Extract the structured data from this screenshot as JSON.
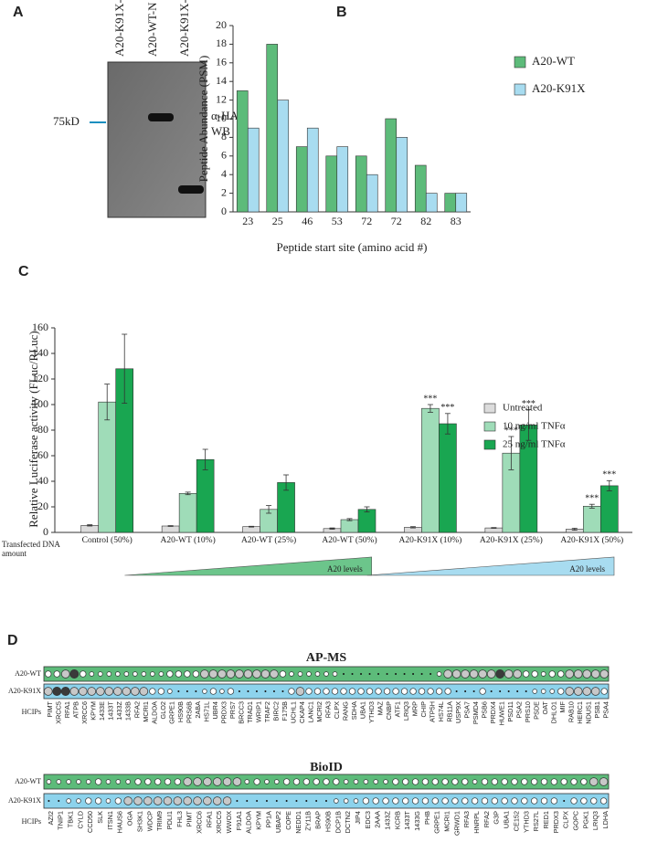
{
  "panel_a": {
    "label": "A",
    "lanes": [
      "A20-K91X-C",
      "A20-WT-N",
      "A20-K91X-N"
    ],
    "marker": "75kD",
    "antibody": [
      "α-HA",
      "WB"
    ]
  },
  "chart_data": [
    {
      "type": "bar",
      "label": "B",
      "y_label": "Peptide Abundance (PSM)",
      "x_label": "Peptide start site (amino acid #)",
      "categories": [
        "23",
        "25",
        "46",
        "53",
        "72",
        "72",
        "82",
        "83"
      ],
      "series": [
        {
          "name": "A20-WT",
          "color": "#5dbb7a",
          "values": [
            13,
            18,
            7,
            6,
            6,
            10,
            5,
            2
          ]
        },
        {
          "name": "A20-K91X",
          "color": "#a8dcf0",
          "values": [
            9,
            12,
            9,
            7,
            4,
            8,
            2,
            2
          ]
        }
      ],
      "ylim": [
        0,
        20
      ],
      "yticks": [
        0,
        2,
        4,
        6,
        8,
        10,
        12,
        14,
        16,
        18,
        20
      ]
    },
    {
      "type": "grouped-bar-error",
      "label": "C",
      "y_label": "Relative Luciferase activity (FLuc/RLuc)",
      "x_note": [
        "Transfected DNA",
        "amount"
      ],
      "categories": [
        "Control (50%)",
        "A20-WT (10%)",
        "A20-WT (25%)",
        "A20-WT (50%)",
        "A20-K91X (10%)",
        "A20-K91X (25%)",
        "A20-K91X (50%)"
      ],
      "series": [
        {
          "name": "Untreated",
          "color": "#dcdcdc",
          "values": [
            5.5,
            5,
            4.5,
            3,
            4,
            3.5,
            2.5
          ],
          "errors": [
            0.5,
            0.3,
            0.3,
            0.5,
            0.5,
            0.3,
            0.8
          ],
          "significance": [
            null,
            null,
            null,
            null,
            null,
            null,
            null
          ]
        },
        {
          "name": "10 ng/ml TNFα",
          "color": "#9fdcb8",
          "values": [
            102,
            30.5,
            18,
            10,
            97,
            62,
            20.5
          ],
          "errors": [
            14,
            1,
            3,
            0.8,
            3,
            13,
            1.5
          ],
          "significance": [
            null,
            null,
            null,
            null,
            "***",
            "***",
            "***"
          ]
        },
        {
          "name": "25 ng/ml TNFα",
          "color": "#19a651",
          "values": [
            128,
            57,
            39,
            18,
            85,
            84,
            36.5
          ],
          "errors": [
            27,
            8,
            6,
            2,
            8,
            12,
            4
          ],
          "significance": [
            null,
            null,
            null,
            null,
            "***",
            "***",
            "***"
          ]
        }
      ],
      "gradients": [
        {
          "text": "A20 levels",
          "color": "#6cc58b"
        },
        {
          "text": "A20 levels",
          "color": "#a8dcf0"
        }
      ],
      "ylim": [
        0,
        160
      ],
      "yticks": [
        0,
        20,
        40,
        60,
        80,
        100,
        120,
        140,
        160
      ]
    }
  ],
  "panel_d": {
    "label": "D",
    "blocks": [
      {
        "title": "AP-MS",
        "rows": [
          "A20-WT",
          "A20-K91X"
        ],
        "row_colors": [
          "#5dbb7a",
          "#8dd3ec"
        ],
        "axis_label": "HCIPs",
        "proteins": [
          "PIMT",
          "XRCC5",
          "RFA1",
          "ATPB",
          "XRCC6",
          "KPYM",
          "1433E",
          "1433T",
          "1433Z",
          "1433B",
          "RFA2",
          "MCRI1",
          "ALDOA",
          "GLO2",
          "GRPE1",
          "HS90B",
          "PRS6B",
          "2ABA",
          "HS71L",
          "UBR4",
          "PRDX3",
          "PRS7",
          "BRCC3",
          "TRAD1",
          "WRIP1",
          "TRAF2",
          "BIRC2",
          "F175B",
          "UCHL1",
          "CKAP4",
          "LANC1",
          "MCRI2",
          "RFA3",
          "CLPX",
          "RANG",
          "SDHA",
          "UBA1",
          "YTHD3",
          "MAZ",
          "CNBP",
          "ATF1",
          "LRIQ3",
          "MRP",
          "CHIP",
          "ATP5H",
          "HS74L",
          "RB11A",
          "USP9X",
          "PSA7",
          "PSMD4",
          "PSB6",
          "PRDX4",
          "HUWE1",
          "PSD11",
          "PSA2",
          "PRS10",
          "PSDE",
          "OAT",
          "DHLO1",
          "MIF",
          "RAB10",
          "HERC1",
          "NDUS1",
          "PSB1",
          "PSA4"
        ],
        "protein_colors": [
          "#222",
          "#222",
          "#222",
          "#222",
          "#222",
          "#9a9a3a",
          "#222",
          "#9a9a3a",
          "#222",
          "#222",
          "#222",
          "#222",
          "#222",
          "#222",
          "#222",
          "#9a9a3a",
          "#9a9a3a",
          "#9a9a3a",
          "#9a9a3a",
          "#222",
          "#222",
          "#9a9a3a",
          "#d9302a",
          "#d9302a",
          "#d9302a",
          "#d9302a",
          "#d9302a",
          "#d9302a",
          "#222",
          "#222",
          "#222",
          "#222",
          "#222",
          "#222",
          "#222",
          "#222",
          "#222",
          "#222",
          "#222",
          "#222",
          "#222",
          "#222",
          "#222",
          "#222",
          "#222",
          "#222",
          "#222",
          "#d9302a",
          "#9a9a3a",
          "#9a9a3a",
          "#222",
          "#222",
          "#d9302a",
          "#9a9a3a",
          "#9a9a3a",
          "#9a9a3a",
          "#9a9a3a",
          "#9a9a3a",
          "#9a9a3a",
          "#222",
          "#222",
          "#222",
          "#9a9a3a",
          "#9a9a3a",
          "#9a9a3a"
        ],
        "values": [
          [
            2,
            2,
            3,
            4,
            2,
            1,
            1,
            1,
            1,
            1,
            1,
            1,
            1,
            1,
            2,
            2,
            2,
            2,
            3,
            3,
            3,
            3,
            3,
            3,
            3,
            3,
            3,
            2,
            1,
            1,
            1,
            1,
            1,
            1,
            0,
            0,
            0,
            0,
            0,
            0,
            0,
            0,
            0,
            0,
            0,
            1,
            3,
            3,
            3,
            3,
            3,
            3,
            4,
            3,
            3,
            2,
            2,
            1,
            2,
            2,
            3,
            3,
            3,
            3,
            3
          ],
          [
            3,
            4,
            4,
            3,
            3,
            3,
            3,
            3,
            3,
            3,
            3,
            3,
            2,
            2,
            1,
            0,
            0,
            0,
            1,
            2,
            1,
            2,
            0,
            0,
            0,
            0,
            0,
            0,
            2,
            3,
            2,
            2,
            2,
            2,
            2,
            2,
            2,
            2,
            2,
            2,
            2,
            2,
            2,
            2,
            2,
            2,
            2,
            0,
            0,
            0,
            2,
            0,
            0,
            0,
            0,
            0,
            1,
            1,
            1,
            2,
            3,
            3,
            3,
            3,
            2
          ]
        ]
      },
      {
        "title": "BioID",
        "rows": [
          "A20-WT",
          "A20-K91X"
        ],
        "row_colors": [
          "#5dbb7a",
          "#8dd3ec"
        ],
        "axis_label": "HCIPs",
        "proteins": [
          "AZI2",
          "TNIP1",
          "TBK1",
          "CYLD",
          "CCD50",
          "SLK",
          "ITSN1",
          "HAUS6",
          "OGA",
          "SH3K1",
          "WDCP",
          "TRIM9",
          "PDLI1",
          "FHL3",
          "PIMT",
          "XRCC6",
          "RFA1",
          "XRCC5",
          "WWOX",
          "F91A1",
          "ALDOA",
          "KPYM",
          "PP1A",
          "UBAP2",
          "COPE",
          "NEDD1",
          "ZY11B",
          "BRAP",
          "HS90B",
          "DCP1B",
          "DCTN2",
          "JIP4",
          "EDC3",
          "2AAA",
          "1433Z",
          "KCRB",
          "1433T",
          "1433G",
          "PHB",
          "GRPE1",
          "MCRI1",
          "GRWD1",
          "RFA3",
          "HNRPL",
          "RFA2",
          "G3P",
          "UBA1",
          "CE152",
          "YTHD3",
          "RS27L",
          "RED1",
          "PRDX3",
          "CLPX",
          "GOPC",
          "PGK1",
          "LRIQ3",
          "LDHA"
        ],
        "protein_colors": [
          "#d9302a",
          "#d9302a",
          "#d9302a",
          "#d9302a",
          "#d9302a",
          "#d9302a",
          "#d9302a",
          "#d9302a",
          "#d9302a",
          "#d9302a",
          "#d9302a",
          "#d9302a",
          "#d9302a",
          "#d9302a",
          "#222",
          "#222",
          "#222",
          "#222",
          "#222",
          "#222",
          "#9a9a3a",
          "#d9302a",
          "#9a9a3a",
          "#9a9a3a",
          "#d9302a",
          "#9a9a3a",
          "#9a9a3a",
          "#9a9a3a",
          "#9a9a3a",
          "#9a9a3a",
          "#222",
          "#222",
          "#222",
          "#9a9a3a",
          "#9a9a3a",
          "#9a9a3a",
          "#9a9a3a",
          "#9a9a3a",
          "#222",
          "#222",
          "#222",
          "#222",
          "#222",
          "#222",
          "#222",
          "#9a9a3a",
          "#9a9a3a",
          "#d9302a",
          "#222",
          "#222",
          "#222",
          "#222",
          "#222",
          "#222",
          "#d9302a",
          "#222",
          "#9a9a3a"
        ],
        "values": [
          [
            1,
            1,
            1,
            1,
            1,
            2,
            1,
            1,
            1,
            2,
            2,
            2,
            2,
            2,
            3,
            3,
            3,
            3,
            3,
            3,
            1,
            2,
            1,
            1,
            2,
            2,
            2,
            2,
            2,
            2,
            1,
            1,
            1,
            1,
            1,
            2,
            2,
            2,
            2,
            2,
            2,
            2,
            2,
            1,
            2,
            2,
            2,
            2,
            2,
            2,
            2,
            2,
            2,
            2,
            2,
            3,
            3
          ],
          [
            0,
            0,
            1,
            1,
            2,
            2,
            1,
            2,
            3,
            3,
            3,
            3,
            3,
            3,
            3,
            3,
            3,
            3,
            3,
            0,
            0,
            0,
            0,
            0,
            0,
            0,
            0,
            0,
            0,
            1,
            1,
            1,
            2,
            2,
            2,
            2,
            2,
            2,
            2,
            2,
            2,
            2,
            2,
            2,
            2,
            2,
            2,
            2,
            2,
            2,
            2,
            2,
            0,
            2,
            2,
            2,
            2
          ]
        ]
      }
    ]
  }
}
